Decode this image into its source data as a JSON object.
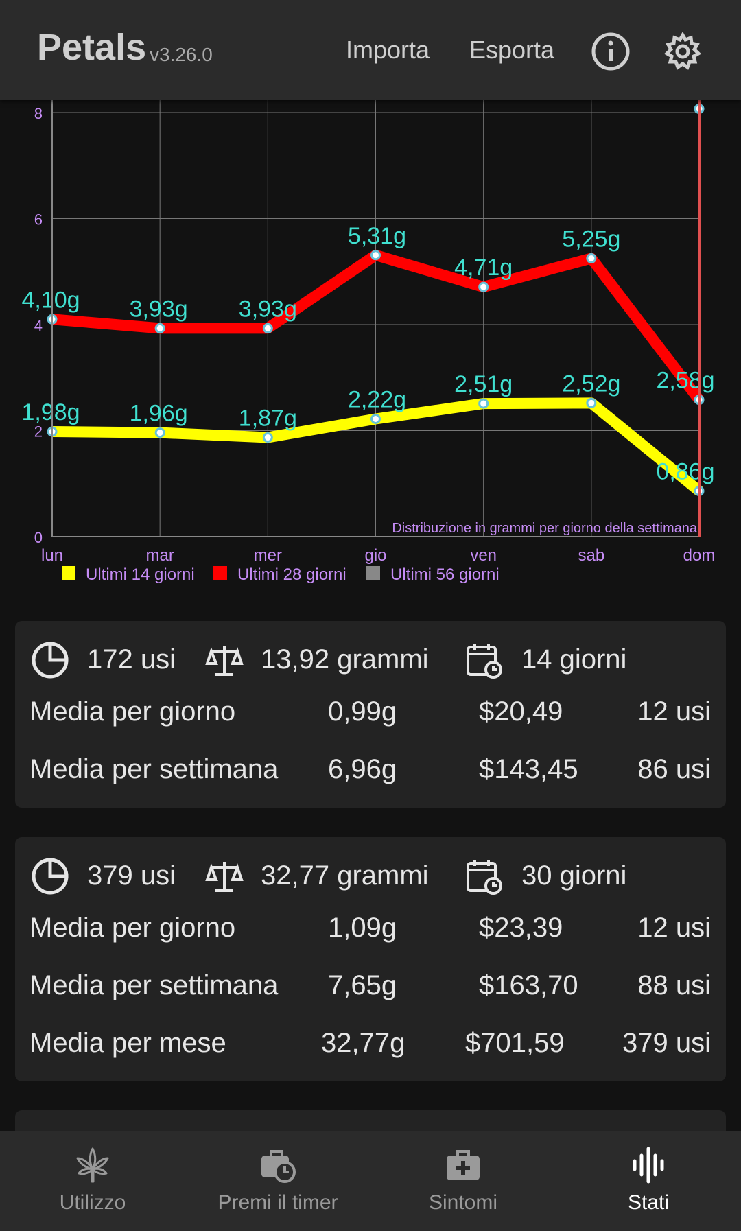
{
  "header": {
    "title": "Petals",
    "version": "v3.26.0",
    "import_label": "Importa",
    "export_label": "Esporta",
    "info_icon": "info-icon",
    "settings_icon": "gear-icon"
  },
  "colors": {
    "background": "#121212",
    "card": "#232323",
    "header": "#2b2b2b",
    "accent_label": "#40e0d0",
    "axis_text": "#c58cf5",
    "series_14": "#ffff00",
    "series_28": "#ff0000",
    "series_56": "#888888",
    "today_marker": "#e05050"
  },
  "chart_data": {
    "type": "line",
    "categories": [
      "lun",
      "mar",
      "mer",
      "gio",
      "ven",
      "sab",
      "dom"
    ],
    "ylim": [
      0,
      8
    ],
    "yticks": [
      "0",
      "2",
      "4",
      "6",
      "8"
    ],
    "annotation": "Distribuzione in grammi per giorno della settimana",
    "grid": true,
    "legend_position": "bottom-left",
    "series": [
      {
        "name": "Ultimi 14 giorni",
        "color": "#ffff00",
        "values": [
          1.98,
          1.96,
          1.87,
          2.22,
          2.51,
          2.52,
          0.86
        ],
        "labels": [
          "1,98g",
          "1,96g",
          "1,87g",
          "2,22g",
          "2,51g",
          "2,52g",
          "0,86g"
        ]
      },
      {
        "name": "Ultimi 28 giorni",
        "color": "#ff0000",
        "values": [
          4.1,
          3.93,
          3.93,
          5.31,
          4.71,
          5.25,
          2.58
        ],
        "labels": [
          "4,10g",
          "3,93g",
          "3,93g",
          "5,31g",
          "4,71g",
          "5,25g",
          "2,58g"
        ]
      },
      {
        "name": "Ultimi 56 giorni",
        "color": "#888888",
        "values": [
          null,
          null,
          null,
          null,
          null,
          null,
          8.07
        ],
        "labels": [
          "",
          "",
          "",
          "",
          "",
          "",
          ""
        ]
      }
    ]
  },
  "cards": [
    {
      "uses": "172 usi",
      "grams": "13,92 grammi",
      "days": "14 giorni",
      "rows": [
        [
          "Media per giorno",
          "0,99g",
          "$20,49",
          "12 usi"
        ],
        [
          "Media per settimana",
          "6,96g",
          "$143,45",
          "86 usi"
        ]
      ]
    },
    {
      "uses": "379 usi",
      "grams": "32,77 grammi",
      "days": "30 giorni",
      "rows": [
        [
          "Media per giorno",
          "1,09g",
          "$23,39",
          "12 usi"
        ],
        [
          "Media per settimana",
          "7,65g",
          "$163,70",
          "88 usi"
        ],
        [
          "Media per mese",
          "32,77g",
          "$701,59",
          "379 usi"
        ]
      ]
    }
  ],
  "nav": [
    {
      "label": "Utilizzo",
      "icon": "cannabis-leaf-icon"
    },
    {
      "label": "Premi il timer",
      "icon": "timer-bag-icon"
    },
    {
      "label": "Sintomi",
      "icon": "medkit-icon"
    },
    {
      "label": "Stati",
      "icon": "soundwave-icon"
    }
  ]
}
